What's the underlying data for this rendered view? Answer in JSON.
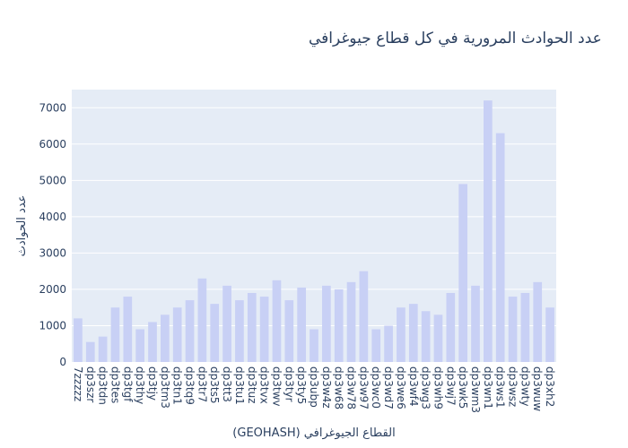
{
  "chart_data": {
    "type": "bar",
    "title": "عدد الحوادث المرورية في كل قطاع جيوغرافي",
    "xlabel": "القطاع الجيوغرافي (GEOHASH)",
    "ylabel": "عدد الحوادث",
    "ylim": [
      0,
      7500
    ],
    "yticks": [
      0,
      1000,
      2000,
      3000,
      4000,
      5000,
      6000,
      7000
    ],
    "grid": true,
    "bar_color": "#c8d0f5",
    "plot_bg": "#e5ecf6",
    "categories": [
      "7zzzzz",
      "dp3szr",
      "dp3tdn",
      "dp3tes",
      "dp3tgf",
      "dp3thy",
      "dp3tjy",
      "dp3tm3",
      "dp3tn1",
      "dp3tq9",
      "dp3tr7",
      "dp3ts5",
      "dp3tt3",
      "dp3tu1",
      "dp3tuz",
      "dp3tvx",
      "dp3twv",
      "dp3tyr",
      "dp3ty5",
      "dp3ubp",
      "dp3w4z",
      "dp3w68",
      "dp3w78",
      "dp3w97",
      "dp3wc0",
      "dp3wd7",
      "dp3we6",
      "dp3wf4",
      "dp3wg3",
      "dp3wh9",
      "dp3wj7",
      "dp3wk5",
      "dp3wm3",
      "dp3wn1",
      "dp3ws1",
      "dp3wsz",
      "dp3wty",
      "dp3wuw",
      "dp3xh2"
    ],
    "values": [
      1200,
      550,
      700,
      1500,
      1800,
      900,
      1100,
      1300,
      1500,
      1700,
      2300,
      1600,
      2100,
      1700,
      1900,
      1800,
      2250,
      1700,
      2050,
      900,
      2100,
      2000,
      2200,
      2500,
      900,
      1000,
      1500,
      1600,
      1400,
      1300,
      1900,
      4900,
      2100,
      7200,
      6300,
      1800,
      1900,
      2200,
      1500
    ]
  }
}
